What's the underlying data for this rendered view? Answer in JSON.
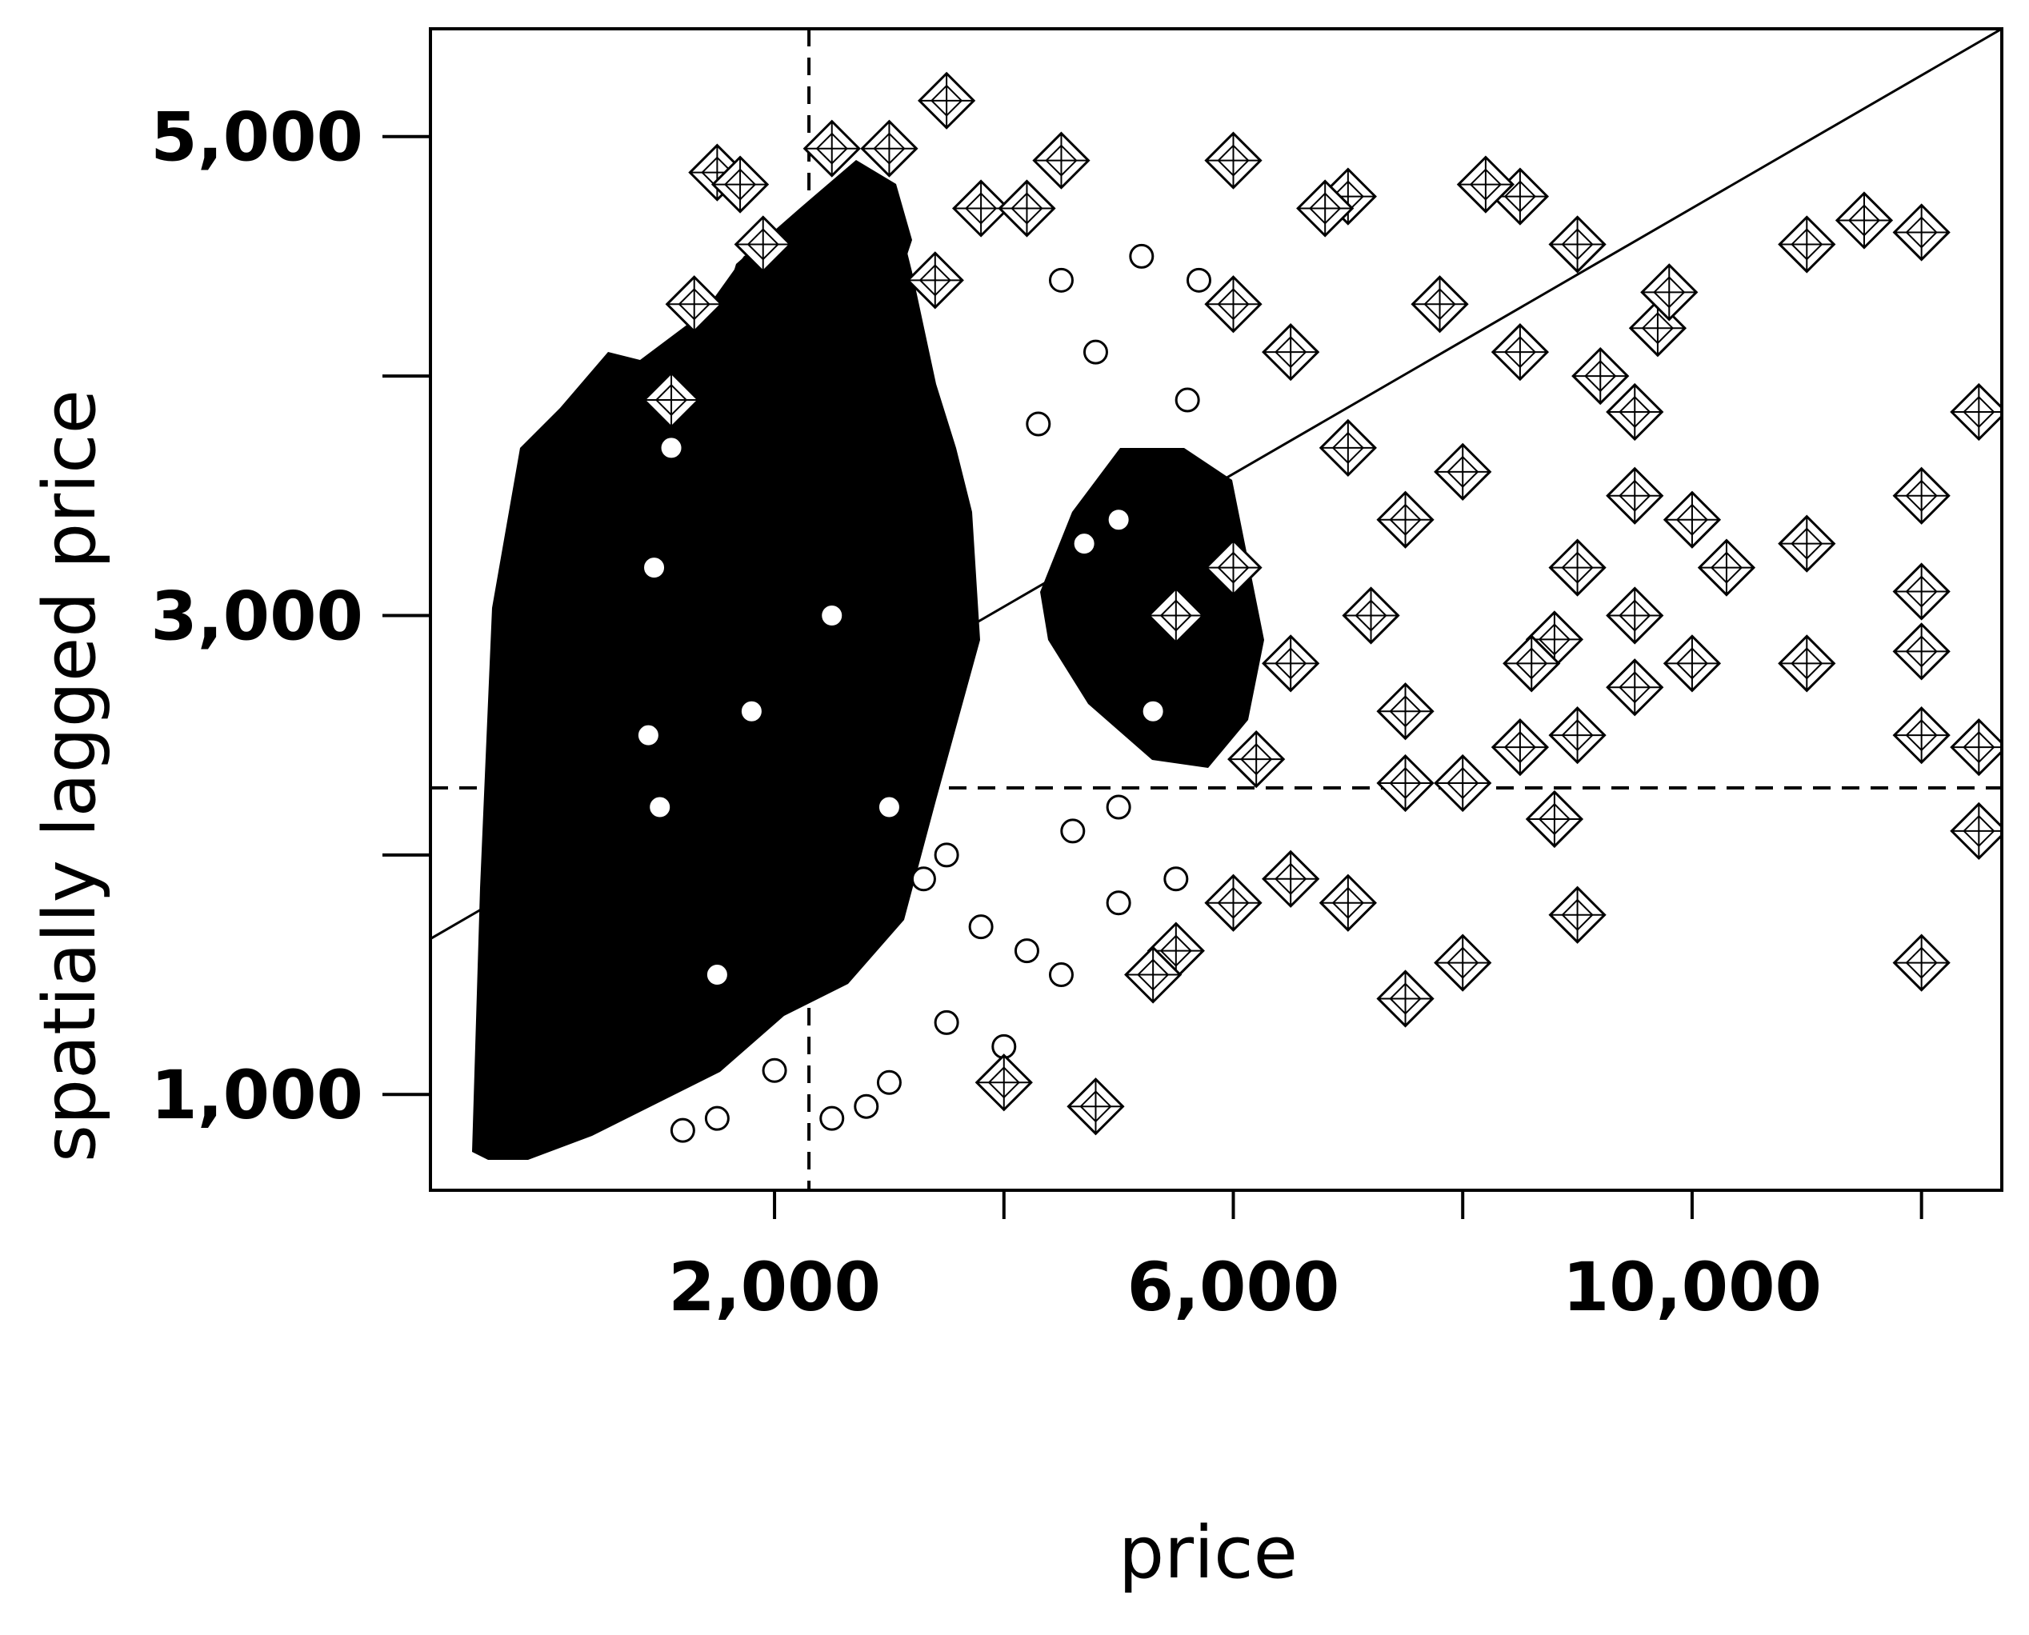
{
  "chart_data": {
    "type": "scatter",
    "title": "",
    "xlabel": "price",
    "ylabel": "spatially lagged price",
    "xlim": [
      -1000,
      12700
    ],
    "ylim": [
      600,
      5450
    ],
    "x_ticks": [
      2000,
      4000,
      6000,
      8000,
      10000,
      12000
    ],
    "x_tick_labels": [
      "2,000",
      "",
      "6,000",
      "",
      "10,000",
      ""
    ],
    "y_ticks": [
      1000,
      2000,
      3000,
      4000,
      5000
    ],
    "y_tick_labels": [
      "1,000",
      "",
      "3,000",
      "",
      "5,000"
    ],
    "mean_lines": {
      "x": 2300,
      "y": 2280
    },
    "regression_line": {
      "x": [
        -1000,
        12700
      ],
      "y": [
        1650,
        5450
      ]
    },
    "grid": false,
    "legend": "none",
    "series": [
      {
        "marker": "circle",
        "values": [
          [
            1500,
            1500
          ],
          [
            1800,
            2600
          ],
          [
            2500,
            3000
          ],
          [
            3000,
            2200
          ],
          [
            3500,
            2000
          ],
          [
            4000,
            1200
          ],
          [
            4500,
            1500
          ],
          [
            5000,
            2200
          ],
          [
            5000,
            1800
          ],
          [
            5500,
            1900
          ],
          [
            5000,
            3400
          ],
          [
            4800,
            4100
          ],
          [
            5200,
            4500
          ],
          [
            5700,
            4400
          ],
          [
            4500,
            4400
          ],
          [
            3500,
            1300
          ],
          [
            3000,
            1050
          ],
          [
            2500,
            900
          ],
          [
            1500,
            900
          ],
          [
            1200,
            850
          ],
          [
            3800,
            1700
          ],
          [
            4200,
            1600
          ],
          [
            4600,
            2100
          ],
          [
            5300,
            2600
          ],
          [
            2000,
            1100
          ],
          [
            3300,
            1900
          ],
          [
            4300,
            3800
          ],
          [
            4700,
            3300
          ],
          [
            5600,
            3900
          ],
          [
            2800,
            950
          ],
          [
            1000,
            2200
          ],
          [
            900,
            2500
          ],
          [
            950,
            3200
          ],
          [
            1100,
            3700
          ]
        ]
      },
      {
        "marker": "diamond-cross",
        "values": [
          [
            1500,
            4850
          ],
          [
            1700,
            4800
          ],
          [
            2500,
            4950
          ],
          [
            3000,
            4950
          ],
          [
            3500,
            5150
          ],
          [
            4500,
            4900
          ],
          [
            6000,
            4900
          ],
          [
            7000,
            4750
          ],
          [
            8500,
            4750
          ],
          [
            9000,
            4550
          ],
          [
            11000,
            4550
          ],
          [
            11500,
            4650
          ],
          [
            12000,
            4600
          ],
          [
            12500,
            3850
          ],
          [
            12000,
            3500
          ],
          [
            11000,
            3300
          ],
          [
            10000,
            3400
          ],
          [
            10300,
            3200
          ],
          [
            12000,
            3100
          ],
          [
            12000,
            2850
          ],
          [
            12000,
            2500
          ],
          [
            12500,
            2450
          ],
          [
            12500,
            2100
          ],
          [
            12000,
            1550
          ],
          [
            11000,
            2800
          ],
          [
            10000,
            2800
          ],
          [
            9500,
            2700
          ],
          [
            9500,
            3000
          ],
          [
            9000,
            1750
          ],
          [
            8800,
            2150
          ],
          [
            8000,
            1550
          ],
          [
            7500,
            1400
          ],
          [
            7000,
            1800
          ],
          [
            6500,
            1900
          ],
          [
            6000,
            1800
          ],
          [
            5500,
            1600
          ],
          [
            5300,
            1500
          ],
          [
            7500,
            2300
          ],
          [
            8000,
            2300
          ],
          [
            9000,
            2500
          ],
          [
            8500,
            2450
          ],
          [
            8500,
            4100
          ],
          [
            9200,
            4000
          ],
          [
            9700,
            4200
          ],
          [
            9800,
            4350
          ],
          [
            7800,
            4300
          ],
          [
            8200,
            4800
          ],
          [
            4800,
            950
          ],
          [
            4000,
            1050
          ],
          [
            7500,
            2600
          ],
          [
            7000,
            3700
          ],
          [
            7500,
            3400
          ],
          [
            8000,
            3600
          ],
          [
            9500,
            3500
          ],
          [
            6000,
            4300
          ],
          [
            6500,
            4100
          ],
          [
            6800,
            4700
          ],
          [
            6200,
            2400
          ],
          [
            9500,
            3850
          ],
          [
            1100,
            3900
          ],
          [
            1300,
            4300
          ],
          [
            1900,
            4550
          ],
          [
            3400,
            4400
          ],
          [
            3800,
            4700
          ],
          [
            4200,
            4700
          ],
          [
            5500,
            3000
          ],
          [
            6000,
            3200
          ],
          [
            6500,
            2800
          ],
          [
            7200,
            3000
          ],
          [
            8800,
            2900
          ],
          [
            8600,
            2800
          ],
          [
            9000,
            3200
          ]
        ]
      }
    ]
  }
}
